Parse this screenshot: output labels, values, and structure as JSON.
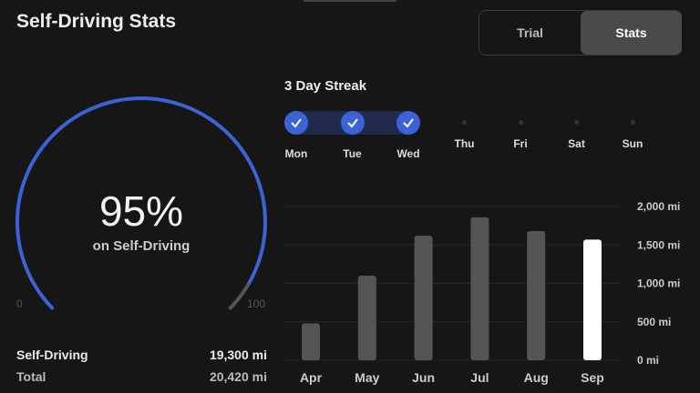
{
  "header": {
    "title": "Self-Driving Stats"
  },
  "toggle": {
    "options": [
      "Trial",
      "Stats"
    ],
    "selected": "Stats"
  },
  "gauge": {
    "percent": 95,
    "value_text": "95%",
    "label": "on Self-Driving",
    "min_label": "0",
    "max_label": "100",
    "color": "#3b63d6"
  },
  "totals": [
    {
      "label": "Self-Driving",
      "value": "19,300 mi"
    },
    {
      "label": "Total",
      "value": "20,420 mi"
    }
  ],
  "streak": {
    "title": "3 Day Streak",
    "days": [
      {
        "name": "Mon",
        "done": true
      },
      {
        "name": "Tue",
        "done": true
      },
      {
        "name": "Wed",
        "done": true
      },
      {
        "name": "Thu",
        "done": false
      },
      {
        "name": "Fri",
        "done": false
      },
      {
        "name": "Sat",
        "done": false
      },
      {
        "name": "Sun",
        "done": false
      }
    ]
  },
  "chart_data": {
    "type": "bar",
    "categories": [
      "Apr",
      "May",
      "Jun",
      "Jul",
      "Aug",
      "Sep"
    ],
    "values": [
      480,
      1100,
      1620,
      1860,
      1680,
      1570
    ],
    "highlight": "Sep",
    "ylim": [
      0,
      2000
    ],
    "yticks": [
      0,
      500,
      1000,
      1500,
      2000
    ],
    "ytick_labels": [
      "0 mi",
      "500 mi",
      "1,000 mi",
      "1,500 mi",
      "2,000 mi"
    ],
    "grid": true
  }
}
